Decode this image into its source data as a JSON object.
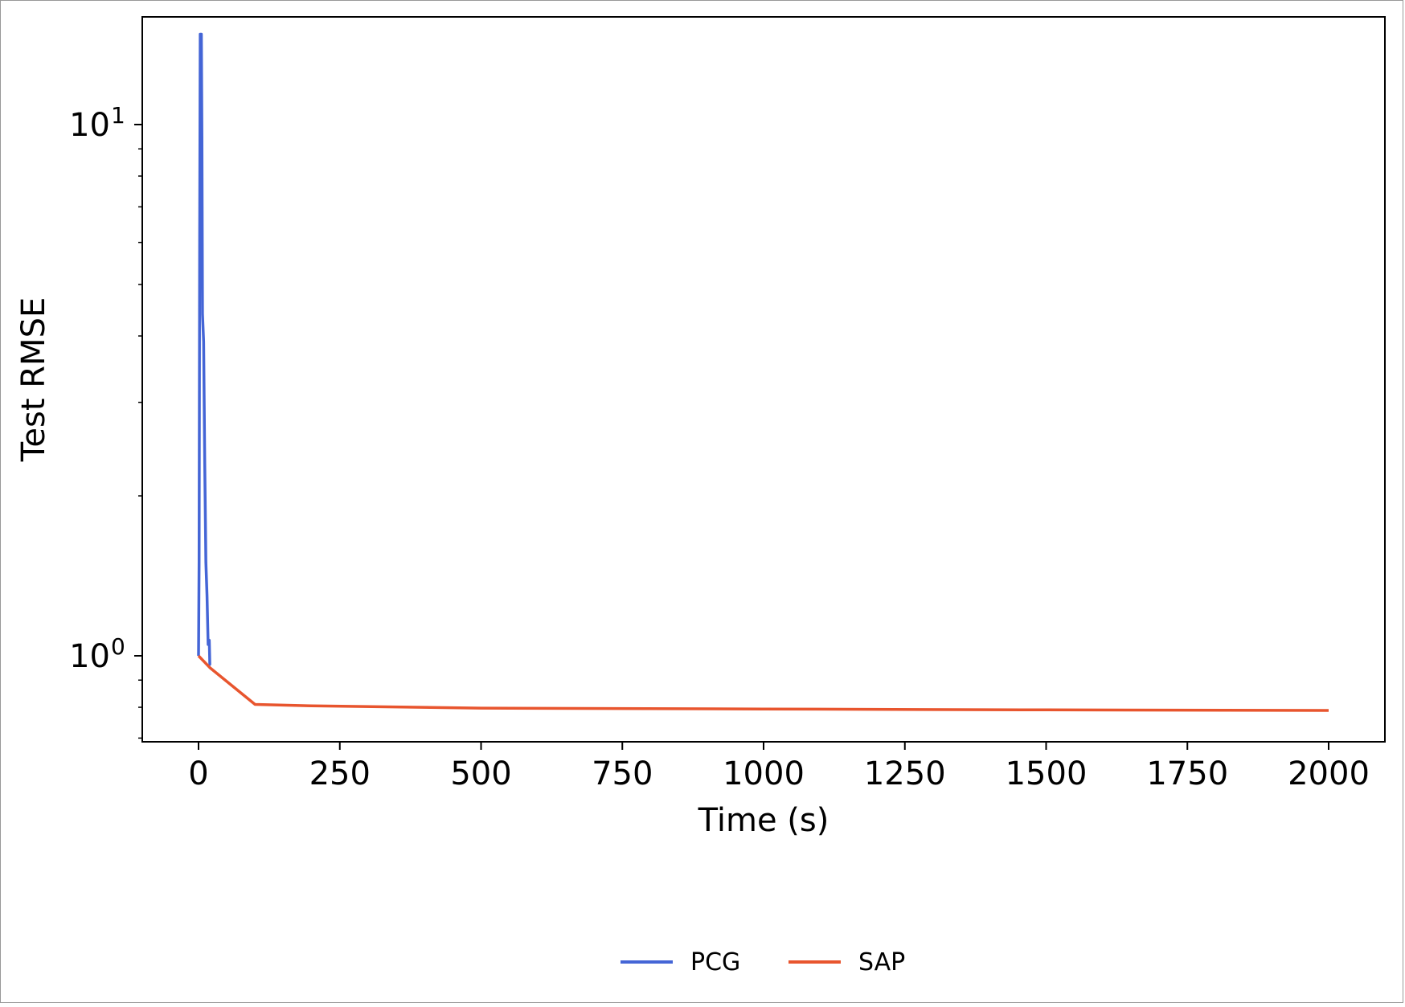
{
  "chart_data": {
    "type": "line",
    "title": "",
    "xlabel": "Time (s)",
    "ylabel": "Test RMSE",
    "yscale": "log",
    "xlim": [
      -100,
      2100
    ],
    "ylim": [
      0.7,
      16.3
    ],
    "grid": false,
    "legend_position": "bottom-center",
    "x_ticks": [
      0,
      250,
      500,
      750,
      1000,
      1250,
      1500,
      1750,
      2000
    ],
    "x_tick_labels": [
      "0",
      "250",
      "500",
      "750",
      "1000",
      "1250",
      "1500",
      "1750",
      "2000"
    ],
    "y_major_ticks": [
      {
        "value": 1,
        "base": "10",
        "exp": "0"
      },
      {
        "value": 10,
        "base": "10",
        "exp": "1"
      }
    ],
    "y_minor_ticks": [
      0.7,
      0.8,
      0.9,
      2,
      3,
      4,
      5,
      6,
      7,
      8,
      9
    ],
    "series": [
      {
        "name": "PCG",
        "color": "#4465d6",
        "points": [
          [
            0,
            1.0
          ],
          [
            1,
            1.5
          ],
          [
            2,
            6.0
          ],
          [
            3,
            14.8
          ],
          [
            5,
            14.8
          ],
          [
            6,
            9.5
          ],
          [
            7,
            4.4
          ],
          [
            9,
            3.9
          ],
          [
            11,
            2.3
          ],
          [
            13,
            1.5
          ],
          [
            15,
            1.3
          ],
          [
            17,
            1.05
          ],
          [
            19,
            1.07
          ],
          [
            20,
            0.96
          ],
          [
            21,
            0.96
          ]
        ]
      },
      {
        "name": "SAP",
        "color": "#e8552e",
        "points": [
          [
            0,
            1.0
          ],
          [
            20,
            0.95
          ],
          [
            100,
            0.81
          ],
          [
            200,
            0.805
          ],
          [
            500,
            0.797
          ],
          [
            1000,
            0.794
          ],
          [
            1500,
            0.791
          ],
          [
            2000,
            0.789
          ]
        ]
      }
    ]
  }
}
